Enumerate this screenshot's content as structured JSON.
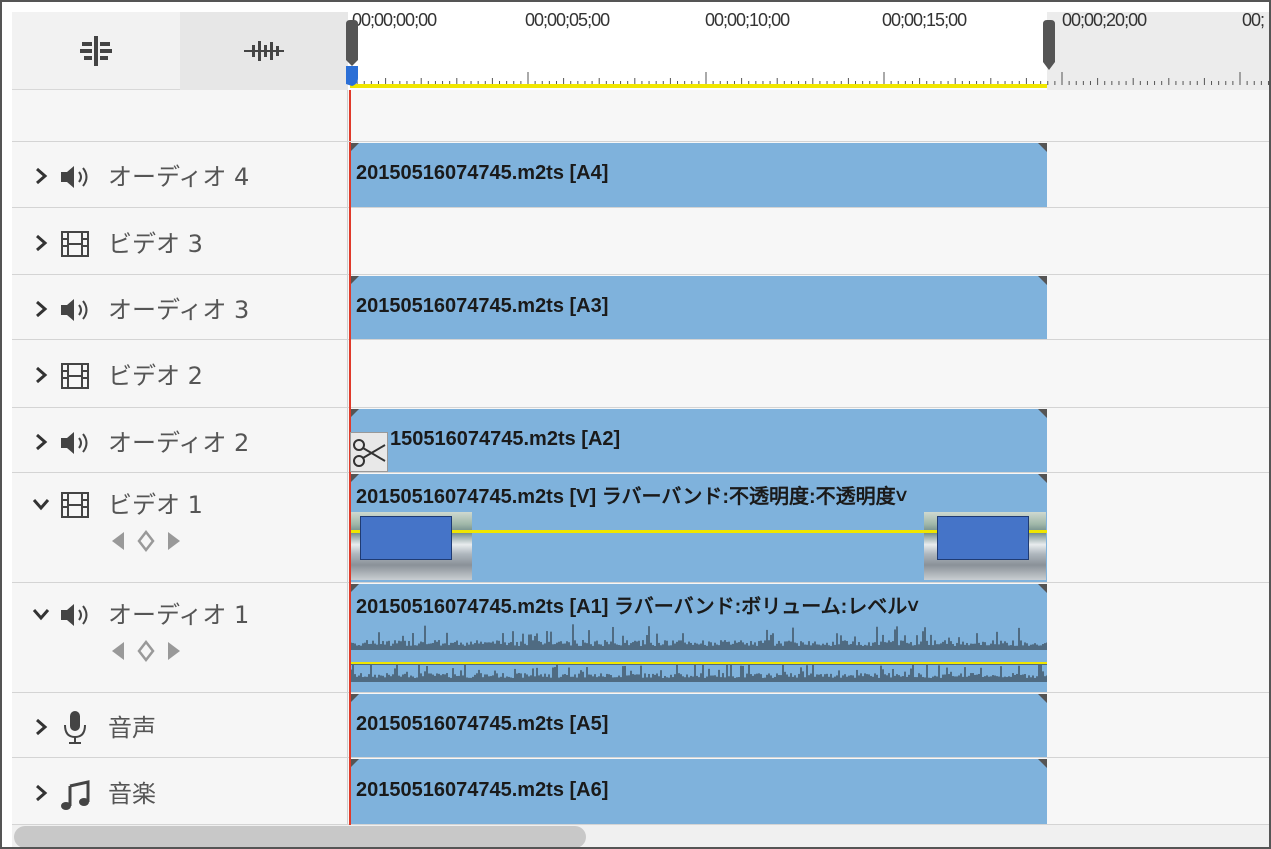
{
  "header": {
    "snap_icon": "snap-icon",
    "waveform_icon": "audio-waveform-icon"
  },
  "ruler": {
    "timecodes": [
      "00;00;00;00",
      "00;00;05;00",
      "00;00;10;00",
      "00;00;15;00",
      "00;00;20;00",
      "00;"
    ]
  },
  "tracks": [
    {
      "name": "オーディオ 4",
      "type": "audio",
      "icon": "speaker-icon",
      "expanded": false,
      "clip": "20150516074745.m2ts [A4]"
    },
    {
      "name": "ビデオ 3",
      "type": "video",
      "icon": "film-icon",
      "expanded": false,
      "clip": ""
    },
    {
      "name": "オーディオ 3",
      "type": "audio",
      "icon": "speaker-icon",
      "expanded": false,
      "clip": "20150516074745.m2ts [A3]"
    },
    {
      "name": "ビデオ 2",
      "type": "video",
      "icon": "film-icon",
      "expanded": false,
      "clip": ""
    },
    {
      "name": "オーディオ 2",
      "type": "audio",
      "icon": "speaker-icon",
      "expanded": false,
      "clip": "150516074745.m2ts [A2]"
    },
    {
      "name": "ビデオ 1",
      "type": "video",
      "icon": "film-icon",
      "expanded": true,
      "clip": "20150516074745.m2ts [V] ラバーバンド:不透明度:不透明度˅"
    },
    {
      "name": "オーディオ 1",
      "type": "audio",
      "icon": "speaker-icon",
      "expanded": true,
      "clip": "20150516074745.m2ts [A1] ラバーバンド:ボリューム:レベル˅"
    },
    {
      "name": "音声",
      "type": "voice",
      "icon": "microphone-icon",
      "expanded": false,
      "clip": "20150516074745.m2ts [A5]"
    },
    {
      "name": "音楽",
      "type": "music",
      "icon": "music-note-icon",
      "expanded": false,
      "clip": "20150516074745.m2ts [A6]"
    }
  ],
  "colors": {
    "clip": "#7fb2dc",
    "playhead": "#e03a2a",
    "work_area": "#f0e600",
    "rubber_band": "#f0e600"
  }
}
